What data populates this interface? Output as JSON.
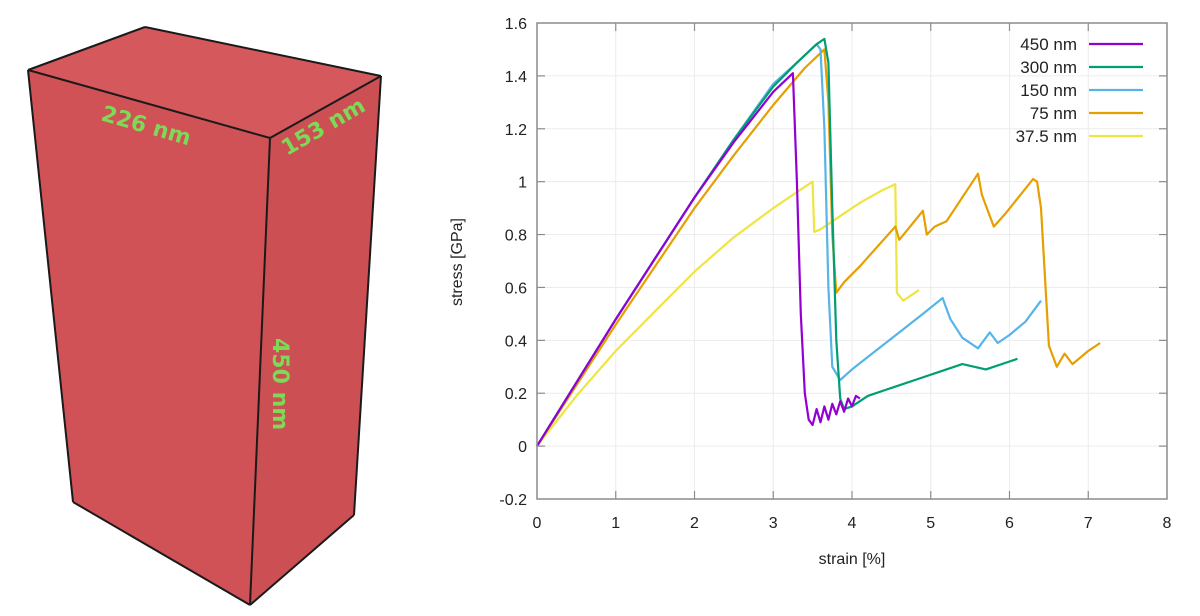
{
  "box": {
    "face_color": "#d05257",
    "top_color": "#d4585c",
    "side_color": "#cc4f54",
    "edge_color": "#1a1a1a",
    "label_color": "#7ed957",
    "dims": {
      "width": "226 nm",
      "depth": "153 nm",
      "height": "450 nm"
    }
  },
  "chart_data": {
    "type": "line",
    "title": "",
    "xlabel": "strain [%]",
    "ylabel": "stress [GPa]",
    "xlim": [
      0,
      8
    ],
    "ylim": [
      -0.2,
      1.6
    ],
    "xticks": [
      "0",
      "1",
      "2",
      "3",
      "4",
      "5",
      "6",
      "7",
      "8"
    ],
    "yticks": [
      "-0.2",
      "0",
      "0.2",
      "0.4",
      "0.6",
      "0.8",
      "1",
      "1.2",
      "1.4",
      "1.6"
    ],
    "grid": true,
    "legend_position": "top-right",
    "series": [
      {
        "name": "450 nm",
        "color": "#9400d3",
        "x": [
          0,
          0.5,
          1,
          1.5,
          2,
          2.5,
          3,
          3.25,
          3.3,
          3.35,
          3.4,
          3.45,
          3.5,
          3.55,
          3.6,
          3.65,
          3.7,
          3.75,
          3.8,
          3.85,
          3.9,
          3.95,
          4.0,
          4.05,
          4.1
        ],
        "y": [
          0,
          0.24,
          0.48,
          0.71,
          0.94,
          1.15,
          1.34,
          1.41,
          1.0,
          0.5,
          0.2,
          0.1,
          0.08,
          0.14,
          0.09,
          0.15,
          0.1,
          0.16,
          0.12,
          0.17,
          0.13,
          0.18,
          0.15,
          0.19,
          0.18
        ]
      },
      {
        "name": "300 nm",
        "color": "#009e73",
        "x": [
          0,
          0.5,
          1,
          1.5,
          2,
          2.5,
          3,
          3.3,
          3.55,
          3.65,
          3.7,
          3.75,
          3.8,
          3.85,
          3.9,
          4.0,
          4.2,
          4.5,
          4.8,
          5.1,
          5.4,
          5.7,
          6.0,
          6.1
        ],
        "y": [
          0,
          0.24,
          0.48,
          0.71,
          0.94,
          1.16,
          1.36,
          1.45,
          1.52,
          1.54,
          1.45,
          0.9,
          0.4,
          0.18,
          0.14,
          0.15,
          0.19,
          0.22,
          0.25,
          0.28,
          0.31,
          0.29,
          0.32,
          0.33
        ]
      },
      {
        "name": "150 nm",
        "color": "#56b4e9",
        "x": [
          0,
          0.5,
          1,
          1.5,
          2,
          2.5,
          3,
          3.3,
          3.55,
          3.6,
          3.65,
          3.7,
          3.75,
          3.85,
          4.0,
          4.3,
          4.6,
          4.9,
          5.15,
          5.25,
          5.4,
          5.6,
          5.75,
          5.85,
          6.0,
          6.2,
          6.4
        ],
        "y": [
          0,
          0.24,
          0.48,
          0.71,
          0.94,
          1.16,
          1.37,
          1.45,
          1.52,
          1.5,
          1.2,
          0.6,
          0.3,
          0.25,
          0.29,
          0.36,
          0.43,
          0.5,
          0.56,
          0.48,
          0.41,
          0.37,
          0.43,
          0.39,
          0.42,
          0.47,
          0.55
        ]
      },
      {
        "name": "75 nm",
        "color": "#e69f00",
        "x": [
          0,
          0.5,
          1,
          1.5,
          2,
          2.5,
          3,
          3.4,
          3.65,
          3.7,
          3.75,
          3.8,
          3.9,
          4.1,
          4.4,
          4.55,
          4.6,
          4.9,
          4.95,
          5.05,
          5.2,
          5.6,
          5.65,
          5.8,
          5.95,
          6.3,
          6.35,
          6.4,
          6.5,
          6.6,
          6.7,
          6.8,
          7.0,
          7.15
        ],
        "y": [
          0,
          0.23,
          0.46,
          0.68,
          0.9,
          1.1,
          1.29,
          1.43,
          1.5,
          1.3,
          0.8,
          0.58,
          0.62,
          0.68,
          0.78,
          0.83,
          0.78,
          0.89,
          0.8,
          0.83,
          0.85,
          1.03,
          0.95,
          0.83,
          0.88,
          1.01,
          1.0,
          0.9,
          0.38,
          0.3,
          0.35,
          0.31,
          0.36,
          0.39
        ]
      },
      {
        "name": "37.5 nm",
        "color": "#f0e442",
        "x": [
          0,
          0.5,
          1,
          1.5,
          2,
          2.5,
          3,
          3.35,
          3.5,
          3.52,
          3.6,
          3.8,
          4.1,
          4.4,
          4.55,
          4.57,
          4.65,
          4.7,
          4.85
        ],
        "y": [
          0,
          0.19,
          0.36,
          0.51,
          0.66,
          0.79,
          0.9,
          0.97,
          1.0,
          0.81,
          0.82,
          0.86,
          0.92,
          0.97,
          0.99,
          0.58,
          0.55,
          0.56,
          0.59
        ]
      }
    ]
  }
}
